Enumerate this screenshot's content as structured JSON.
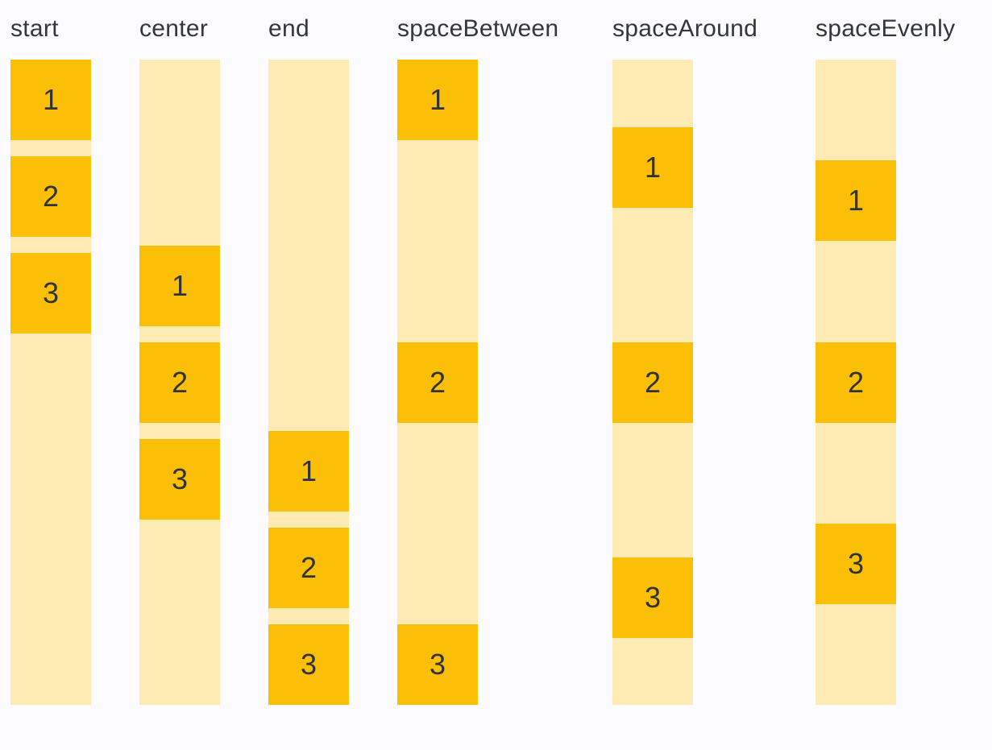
{
  "colors": {
    "background": "#fcfcff",
    "container": "#fdebb3",
    "item": "#fcbf07",
    "header_text": "#33373c",
    "item_text": "#303438"
  },
  "sections": [
    {
      "label": "start",
      "alignment": "start",
      "items": [
        "1",
        "2",
        "3"
      ]
    },
    {
      "label": "center",
      "alignment": "center",
      "items": [
        "1",
        "2",
        "3"
      ]
    },
    {
      "label": "end",
      "alignment": "end",
      "items": [
        "1",
        "2",
        "3"
      ]
    },
    {
      "label": "spaceBetween",
      "alignment": "spaceBetween",
      "items": [
        "1",
        "2",
        "3"
      ]
    },
    {
      "label": "spaceAround",
      "alignment": "spaceAround",
      "items": [
        "1",
        "2",
        "3"
      ]
    },
    {
      "label": "spaceEvenly",
      "alignment": "spaceEvenly",
      "items": [
        "1",
        "2",
        "3"
      ]
    }
  ]
}
